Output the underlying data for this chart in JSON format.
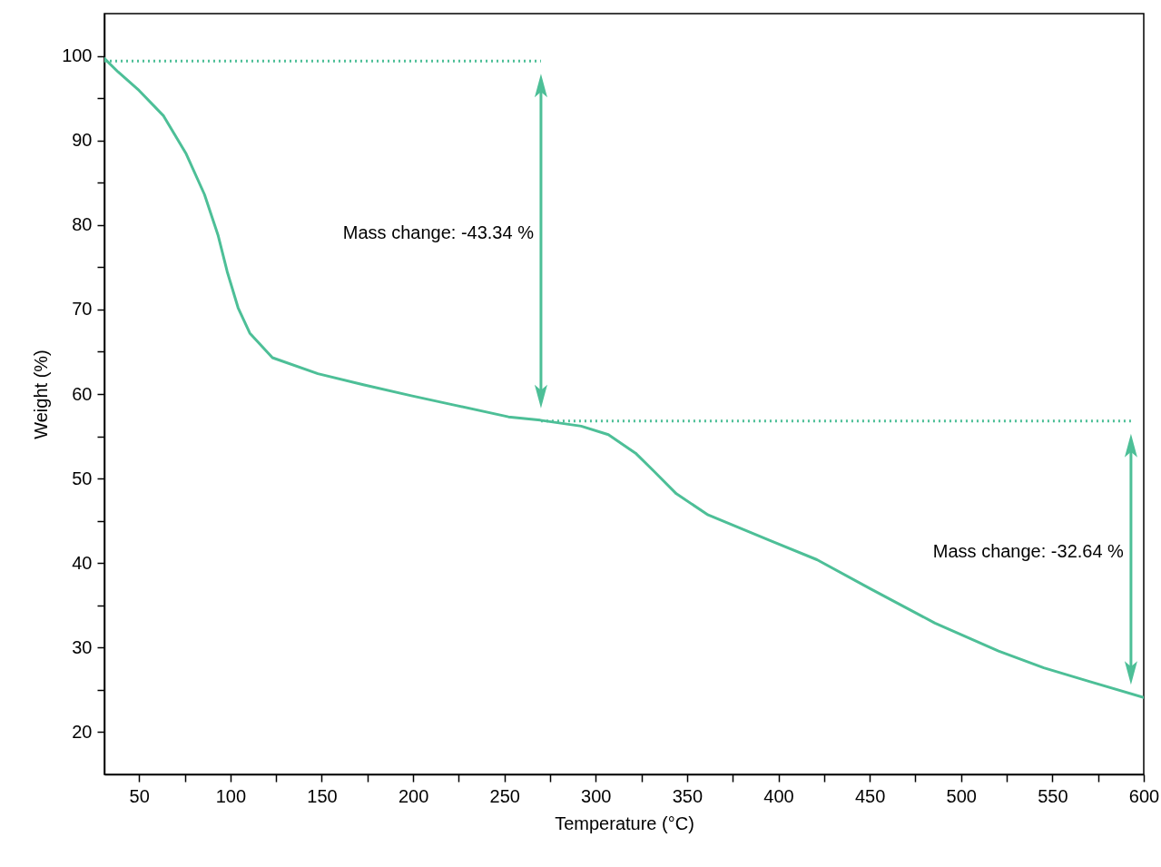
{
  "chart_data": {
    "type": "line",
    "xlabel": "Temperature (°C)",
    "ylabel": "Weight (%)",
    "xlim": [
      31,
      600
    ],
    "ylim": [
      15,
      105
    ],
    "xticks": [
      50,
      {
        "value": 75,
        "label": null
      },
      100,
      {
        "value": 125,
        "label": null
      },
      150,
      {
        "value": 175,
        "label": null
      },
      200,
      {
        "value": 225,
        "label": null
      },
      250,
      {
        "value": 275,
        "label": null
      },
      300,
      {
        "value": 325,
        "label": null
      },
      350,
      {
        "value": 375,
        "label": null
      },
      400,
      {
        "value": 425,
        "label": null
      },
      450,
      {
        "value": 475,
        "label": null
      },
      500,
      {
        "value": 525,
        "label": null
      },
      550,
      {
        "value": 575,
        "label": null
      },
      600
    ],
    "yticks": [
      20,
      {
        "value": 25,
        "label": null
      },
      30,
      {
        "value": 35,
        "label": null
      },
      40,
      {
        "value": 45,
        "label": null
      },
      50,
      {
        "value": 55,
        "label": null
      },
      60,
      {
        "value": 65,
        "label": null
      },
      70,
      {
        "value": 75,
        "label": null
      },
      80,
      {
        "value": 85,
        "label": null
      },
      90,
      {
        "value": 95,
        "label": null
      },
      100
    ],
    "grid": false,
    "series": [
      {
        "color": "#4dbf97",
        "line_style": "solid",
        "x": [
          31,
          38.5,
          50,
          63.4,
          75.8,
          85.8,
          93.2,
          98.2,
          104.2,
          110.6,
          123,
          147.9,
          172.7,
          199,
          222.4,
          252.2,
          269.6,
          292,
          306.9,
          321.8,
          331.7,
          344.1,
          361.5,
          396.3,
          421.1,
          450.9,
          485.7,
          520.5,
          545.3,
          570.2,
          600
        ],
        "values": [
          99.7,
          98.1,
          95.9,
          92.9,
          88.4,
          83.6,
          78.8,
          74.5,
          70.2,
          67.2,
          64.3,
          62.4,
          61.1,
          59.8,
          58.7,
          57.3,
          56.9,
          56.2,
          55.2,
          53.0,
          50.9,
          48.2,
          45.7,
          42.6,
          40.4,
          36.9,
          32.9,
          29.6,
          27.6,
          26.0,
          24.1
        ]
      },
      {
        "color": "#4dbf97",
        "line_style": "dotted",
        "x": [
          31,
          270
        ],
        "values": [
          99.4,
          99.4
        ]
      },
      {
        "color": "#4dbf97",
        "line_style": "dotted",
        "x": [
          270,
          593
        ],
        "values": [
          56.8,
          56.8
        ]
      }
    ],
    "annotations": [
      "Mass change: -43.34 %",
      "Mass change: -32.64 %"
    ]
  }
}
